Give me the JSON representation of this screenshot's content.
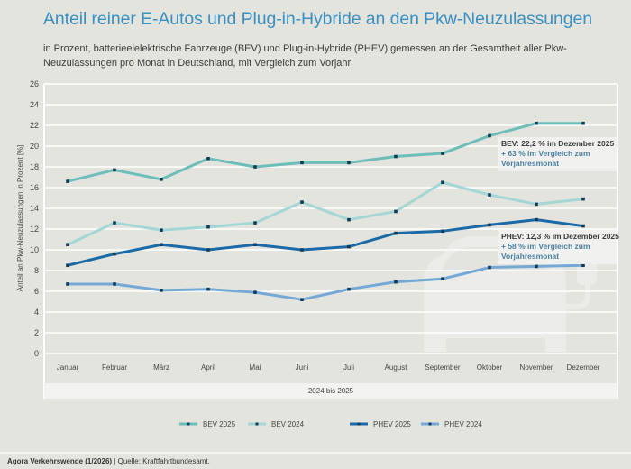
{
  "header": {
    "title": "Anteil reiner E-Autos und Plug-in-Hybride an den Pkw-Neuzulassungen",
    "subtitle": "in Prozent, batterieelelektrische Fahrzeuge (BEV) und Plug-in-Hybride (PHEV) gemessen an der Gesamtheit aller Pkw-Neuzulassungen pro Monat in Deutschland, mit Vergleich zum Vorjahr"
  },
  "footer": {
    "publisher": "Agora Verkehrswende (1/2026)",
    "separator": " | ",
    "source": "Quelle: Kraftfahrtbundesamt."
  },
  "colors": {
    "bev2025": "#6dbdb8",
    "bev2024": "#a3d6d4",
    "phev2025": "#1a6aa8",
    "phev2024": "#74a9d6",
    "marker": "#123a55",
    "title": "#3a8fc2"
  },
  "chart_data": {
    "type": "line",
    "title": "Anteil reiner E-Autos und Plug-in-Hybride an den Pkw-Neuzulassungen",
    "xlabel": "2024 bis 2025",
    "ylabel": "Anteil an Pkw-Neuzulassungen in Prozent [%]",
    "ylim": [
      0,
      26
    ],
    "yticks": [
      0,
      2,
      4,
      6,
      8,
      10,
      12,
      14,
      16,
      18,
      20,
      22,
      24,
      26
    ],
    "grid": true,
    "legend_position": "bottom",
    "categories": [
      "Januar",
      "Februar",
      "März",
      "April",
      "Mai",
      "Juni",
      "Juli",
      "August",
      "September",
      "Oktober",
      "November",
      "Dezember"
    ],
    "series": [
      {
        "key": "bev2025",
        "name": "BEV 2025",
        "values": [
          16.6,
          17.7,
          16.8,
          18.8,
          18.0,
          18.4,
          18.4,
          19.0,
          19.3,
          21.0,
          22.2,
          22.2
        ]
      },
      {
        "key": "bev2024",
        "name": "BEV 2024",
        "values": [
          10.5,
          12.6,
          11.9,
          12.2,
          12.6,
          14.6,
          12.9,
          13.7,
          16.5,
          15.3,
          14.4,
          14.9
        ]
      },
      {
        "key": "phev2025",
        "name": "PHEV 2025",
        "values": [
          8.5,
          9.6,
          10.5,
          10.0,
          10.5,
          10.0,
          10.3,
          11.6,
          11.8,
          12.4,
          12.9,
          12.3
        ]
      },
      {
        "key": "phev2024",
        "name": "PHEV 2024",
        "values": [
          6.7,
          6.7,
          6.1,
          6.2,
          5.9,
          5.2,
          6.2,
          6.9,
          7.2,
          8.3,
          8.4,
          8.5
        ]
      }
    ],
    "annotations": [
      {
        "series": "bev2025",
        "line1": "BEV: 22,2 % im Dezember 2025",
        "line2": "+ 63 % im Vergleich zum",
        "line3": "Vorjahresmonat"
      },
      {
        "series": "phev2025",
        "line1": "PHEV: 12,3 % im Dezember 2025",
        "line2": "+ 58 % im Vergleich zum",
        "line3": "Vorjahresmonat"
      }
    ]
  }
}
